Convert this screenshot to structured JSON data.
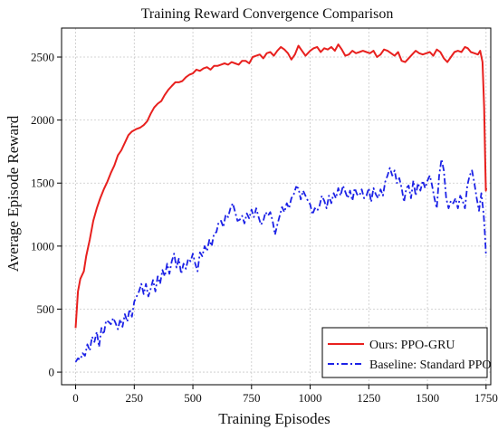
{
  "chart_data": {
    "type": "line",
    "title": "Training Reward Convergence Comparison",
    "xlabel": "Training Episodes",
    "ylabel": "Average Episode Reward",
    "xlim": [
      -60,
      1770
    ],
    "ylim": [
      -100,
      2730
    ],
    "xticks": [
      0,
      250,
      500,
      750,
      1000,
      1250,
      1500,
      1750
    ],
    "yticks": [
      0,
      500,
      1000,
      1500,
      2000,
      2500
    ],
    "grid": true,
    "legend_position": "bottom-right",
    "colors": {
      "ours": "#e8201e",
      "baseline": "#1c22e6"
    },
    "series": [
      {
        "name": "Ours: PPO-GRU",
        "color": "#e8201e",
        "style": "solid",
        "points": [
          [
            0,
            350
          ],
          [
            10,
            640
          ],
          [
            20,
            740
          ],
          [
            35,
            800
          ],
          [
            45,
            920
          ],
          [
            60,
            1050
          ],
          [
            75,
            1200
          ],
          [
            90,
            1300
          ],
          [
            105,
            1380
          ],
          [
            120,
            1450
          ],
          [
            135,
            1510
          ],
          [
            150,
            1580
          ],
          [
            165,
            1640
          ],
          [
            180,
            1720
          ],
          [
            195,
            1760
          ],
          [
            210,
            1820
          ],
          [
            225,
            1880
          ],
          [
            240,
            1910
          ],
          [
            260,
            1930
          ],
          [
            275,
            1940
          ],
          [
            290,
            1960
          ],
          [
            305,
            1990
          ],
          [
            320,
            2050
          ],
          [
            335,
            2100
          ],
          [
            350,
            2130
          ],
          [
            365,
            2150
          ],
          [
            380,
            2200
          ],
          [
            395,
            2240
          ],
          [
            410,
            2270
          ],
          [
            425,
            2300
          ],
          [
            440,
            2300
          ],
          [
            455,
            2310
          ],
          [
            470,
            2340
          ],
          [
            485,
            2360
          ],
          [
            500,
            2370
          ],
          [
            515,
            2400
          ],
          [
            530,
            2390
          ],
          [
            545,
            2410
          ],
          [
            560,
            2420
          ],
          [
            575,
            2400
          ],
          [
            590,
            2430
          ],
          [
            605,
            2430
          ],
          [
            620,
            2440
          ],
          [
            635,
            2450
          ],
          [
            650,
            2440
          ],
          [
            665,
            2460
          ],
          [
            680,
            2450
          ],
          [
            695,
            2440
          ],
          [
            710,
            2470
          ],
          [
            725,
            2470
          ],
          [
            740,
            2450
          ],
          [
            755,
            2500
          ],
          [
            770,
            2510
          ],
          [
            785,
            2520
          ],
          [
            800,
            2490
          ],
          [
            815,
            2530
          ],
          [
            830,
            2540
          ],
          [
            845,
            2510
          ],
          [
            860,
            2550
          ],
          [
            875,
            2580
          ],
          [
            890,
            2560
          ],
          [
            905,
            2530
          ],
          [
            920,
            2480
          ],
          [
            935,
            2520
          ],
          [
            950,
            2590
          ],
          [
            965,
            2550
          ],
          [
            980,
            2510
          ],
          [
            1000,
            2550
          ],
          [
            1015,
            2570
          ],
          [
            1030,
            2580
          ],
          [
            1045,
            2540
          ],
          [
            1060,
            2570
          ],
          [
            1075,
            2560
          ],
          [
            1090,
            2580
          ],
          [
            1105,
            2550
          ],
          [
            1120,
            2600
          ],
          [
            1135,
            2560
          ],
          [
            1150,
            2510
          ],
          [
            1165,
            2520
          ],
          [
            1180,
            2550
          ],
          [
            1195,
            2530
          ],
          [
            1210,
            2540
          ],
          [
            1225,
            2550
          ],
          [
            1240,
            2540
          ],
          [
            1255,
            2530
          ],
          [
            1270,
            2550
          ],
          [
            1285,
            2500
          ],
          [
            1300,
            2520
          ],
          [
            1315,
            2560
          ],
          [
            1330,
            2550
          ],
          [
            1345,
            2530
          ],
          [
            1360,
            2510
          ],
          [
            1375,
            2540
          ],
          [
            1390,
            2470
          ],
          [
            1405,
            2460
          ],
          [
            1420,
            2490
          ],
          [
            1435,
            2520
          ],
          [
            1450,
            2550
          ],
          [
            1465,
            2530
          ],
          [
            1480,
            2520
          ],
          [
            1495,
            2530
          ],
          [
            1510,
            2540
          ],
          [
            1525,
            2510
          ],
          [
            1540,
            2560
          ],
          [
            1555,
            2540
          ],
          [
            1570,
            2490
          ],
          [
            1585,
            2460
          ],
          [
            1600,
            2500
          ],
          [
            1615,
            2540
          ],
          [
            1630,
            2550
          ],
          [
            1645,
            2540
          ],
          [
            1660,
            2580
          ],
          [
            1672,
            2570
          ],
          [
            1685,
            2540
          ],
          [
            1700,
            2530
          ],
          [
            1715,
            2520
          ],
          [
            1725,
            2550
          ],
          [
            1735,
            2460
          ],
          [
            1742,
            2100
          ],
          [
            1746,
            1700
          ],
          [
            1749,
            1440
          ],
          [
            1751,
            1460
          ]
        ]
      },
      {
        "name": "Baseline: Standard PPO",
        "color": "#1c22e6",
        "style": "dashdot",
        "points": [
          [
            0,
            80
          ],
          [
            10,
            110
          ],
          [
            20,
            100
          ],
          [
            30,
            150
          ],
          [
            40,
            130
          ],
          [
            50,
            220
          ],
          [
            60,
            170
          ],
          [
            70,
            280
          ],
          [
            80,
            240
          ],
          [
            90,
            320
          ],
          [
            100,
            200
          ],
          [
            110,
            350
          ],
          [
            120,
            300
          ],
          [
            130,
            410
          ],
          [
            140,
            400
          ],
          [
            150,
            380
          ],
          [
            160,
            430
          ],
          [
            170,
            390
          ],
          [
            180,
            340
          ],
          [
            190,
            420
          ],
          [
            200,
            360
          ],
          [
            210,
            460
          ],
          [
            220,
            400
          ],
          [
            230,
            500
          ],
          [
            240,
            440
          ],
          [
            250,
            560
          ],
          [
            260,
            600
          ],
          [
            270,
            640
          ],
          [
            280,
            700
          ],
          [
            290,
            620
          ],
          [
            300,
            700
          ],
          [
            310,
            600
          ],
          [
            320,
            660
          ],
          [
            330,
            730
          ],
          [
            340,
            640
          ],
          [
            350,
            760
          ],
          [
            360,
            700
          ],
          [
            370,
            810
          ],
          [
            380,
            760
          ],
          [
            390,
            860
          ],
          [
            400,
            780
          ],
          [
            410,
            880
          ],
          [
            420,
            940
          ],
          [
            430,
            830
          ],
          [
            440,
            900
          ],
          [
            450,
            780
          ],
          [
            460,
            860
          ],
          [
            470,
            820
          ],
          [
            480,
            900
          ],
          [
            490,
            880
          ],
          [
            500,
            940
          ],
          [
            510,
            860
          ],
          [
            520,
            800
          ],
          [
            530,
            950
          ],
          [
            540,
            920
          ],
          [
            550,
            1000
          ],
          [
            560,
            960
          ],
          [
            570,
            1050
          ],
          [
            580,
            1000
          ],
          [
            590,
            1100
          ],
          [
            600,
            1110
          ],
          [
            610,
            1190
          ],
          [
            620,
            1200
          ],
          [
            630,
            1150
          ],
          [
            640,
            1250
          ],
          [
            650,
            1230
          ],
          [
            660,
            1300
          ],
          [
            670,
            1340
          ],
          [
            680,
            1270
          ],
          [
            690,
            1200
          ],
          [
            700,
            1210
          ],
          [
            710,
            1240
          ],
          [
            720,
            1180
          ],
          [
            730,
            1260
          ],
          [
            740,
            1220
          ],
          [
            750,
            1290
          ],
          [
            760,
            1230
          ],
          [
            770,
            1300
          ],
          [
            780,
            1230
          ],
          [
            790,
            1170
          ],
          [
            800,
            1200
          ],
          [
            810,
            1270
          ],
          [
            820,
            1240
          ],
          [
            830,
            1270
          ],
          [
            840,
            1200
          ],
          [
            850,
            1090
          ],
          [
            860,
            1170
          ],
          [
            870,
            1240
          ],
          [
            880,
            1310
          ],
          [
            890,
            1270
          ],
          [
            900,
            1340
          ],
          [
            910,
            1300
          ],
          [
            920,
            1380
          ],
          [
            930,
            1410
          ],
          [
            940,
            1470
          ],
          [
            950,
            1460
          ],
          [
            960,
            1370
          ],
          [
            970,
            1440
          ],
          [
            980,
            1400
          ],
          [
            990,
            1360
          ],
          [
            1000,
            1330
          ],
          [
            1010,
            1250
          ],
          [
            1020,
            1300
          ],
          [
            1030,
            1280
          ],
          [
            1040,
            1320
          ],
          [
            1050,
            1400
          ],
          [
            1060,
            1360
          ],
          [
            1070,
            1300
          ],
          [
            1080,
            1400
          ],
          [
            1090,
            1340
          ],
          [
            1100,
            1420
          ],
          [
            1110,
            1380
          ],
          [
            1120,
            1460
          ],
          [
            1130,
            1400
          ],
          [
            1140,
            1480
          ],
          [
            1150,
            1430
          ],
          [
            1160,
            1380
          ],
          [
            1170,
            1440
          ],
          [
            1180,
            1360
          ],
          [
            1190,
            1460
          ],
          [
            1200,
            1410
          ],
          [
            1210,
            1400
          ],
          [
            1220,
            1450
          ],
          [
            1230,
            1380
          ],
          [
            1240,
            1400
          ],
          [
            1250,
            1460
          ],
          [
            1260,
            1350
          ],
          [
            1270,
            1460
          ],
          [
            1280,
            1410
          ],
          [
            1290,
            1380
          ],
          [
            1300,
            1450
          ],
          [
            1310,
            1400
          ],
          [
            1320,
            1510
          ],
          [
            1330,
            1560
          ],
          [
            1340,
            1620
          ],
          [
            1350,
            1560
          ],
          [
            1360,
            1600
          ],
          [
            1370,
            1500
          ],
          [
            1380,
            1540
          ],
          [
            1390,
            1460
          ],
          [
            1400,
            1350
          ],
          [
            1410,
            1460
          ],
          [
            1420,
            1480
          ],
          [
            1430,
            1380
          ],
          [
            1440,
            1520
          ],
          [
            1450,
            1400
          ],
          [
            1460,
            1500
          ],
          [
            1470,
            1440
          ],
          [
            1480,
            1520
          ],
          [
            1490,
            1460
          ],
          [
            1500,
            1520
          ],
          [
            1510,
            1560
          ],
          [
            1520,
            1480
          ],
          [
            1530,
            1380
          ],
          [
            1540,
            1300
          ],
          [
            1550,
            1560
          ],
          [
            1560,
            1690
          ],
          [
            1570,
            1600
          ],
          [
            1580,
            1380
          ],
          [
            1590,
            1300
          ],
          [
            1600,
            1360
          ],
          [
            1610,
            1340
          ],
          [
            1620,
            1380
          ],
          [
            1630,
            1300
          ],
          [
            1640,
            1400
          ],
          [
            1650,
            1360
          ],
          [
            1660,
            1300
          ],
          [
            1670,
            1480
          ],
          [
            1680,
            1560
          ],
          [
            1690,
            1600
          ],
          [
            1700,
            1500
          ],
          [
            1710,
            1380
          ],
          [
            1720,
            1280
          ],
          [
            1730,
            1420
          ],
          [
            1740,
            1250
          ],
          [
            1745,
            1100
          ],
          [
            1750,
            920
          ]
        ]
      }
    ]
  }
}
